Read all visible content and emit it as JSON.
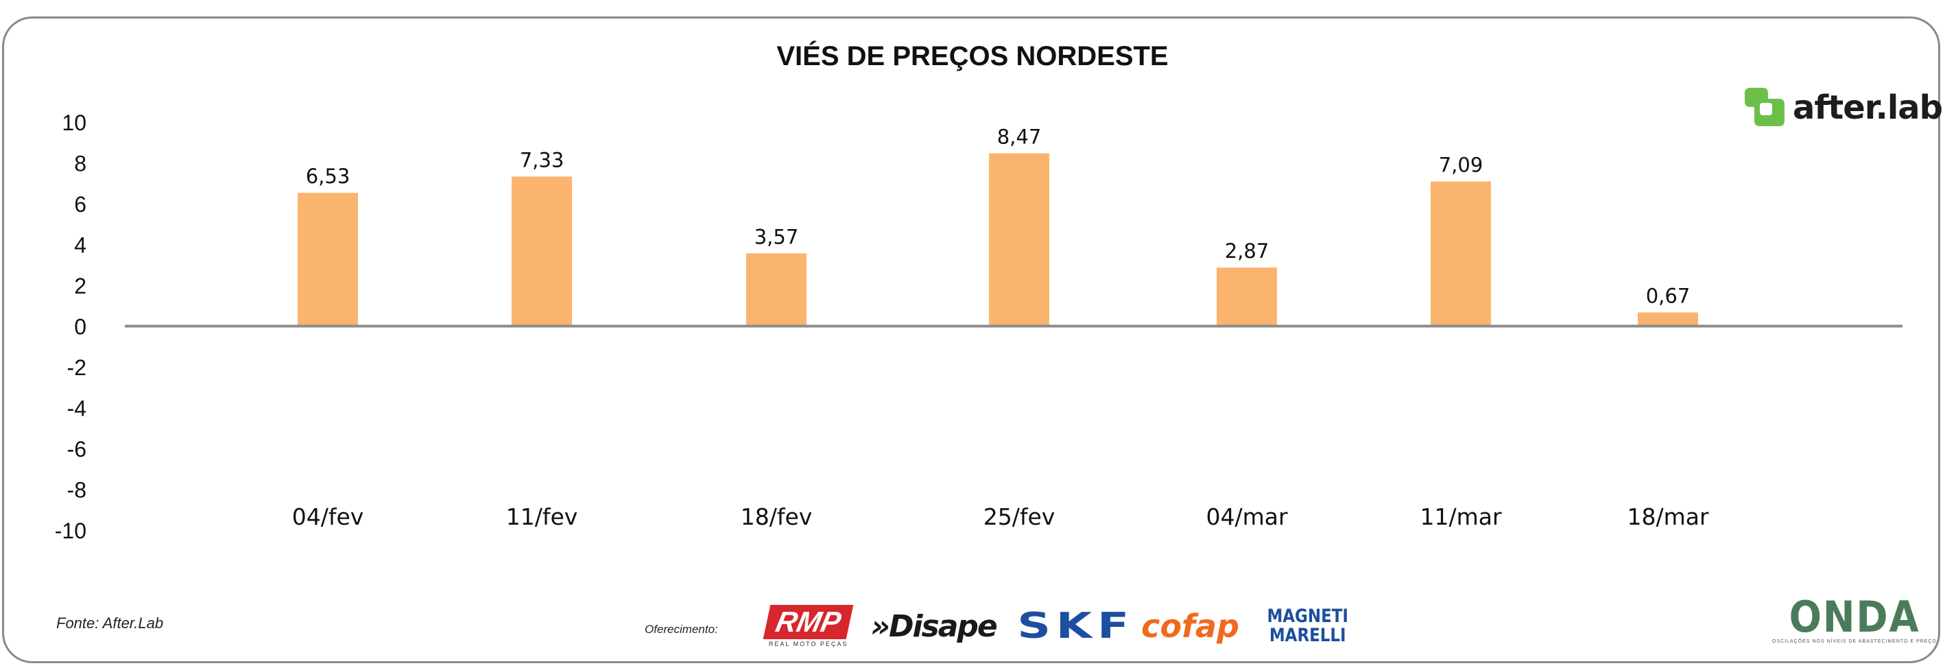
{
  "chart_data": {
    "type": "bar",
    "title": "VIÉS DE PREÇOS NORDESTE",
    "categories": [
      "04/fev",
      "11/fev",
      "18/fev",
      "25/fev",
      "04/mar",
      "11/mar",
      "18/mar"
    ],
    "values": [
      6.53,
      7.33,
      3.57,
      8.47,
      2.87,
      7.09,
      0.67
    ],
    "value_labels": [
      "6,53",
      "7,33",
      "3,57",
      "8,47",
      "2,87",
      "7,09",
      "0,67"
    ],
    "ylim": [
      -10,
      10
    ],
    "yticks": [
      10,
      8,
      6,
      4,
      2,
      0,
      -2,
      -4,
      -6,
      -8,
      -10
    ],
    "grid": false,
    "bar_color": "#fbb46e",
    "axis_color": "#8c8c8c"
  },
  "logo_text": "after.lab",
  "logo_color": "#6cc04a",
  "source": "Fonte: After.Lab",
  "sponsor_label": "Oferecimento:",
  "sponsors": {
    "rmp": "RMP",
    "rmp_sub": "REAL MOTO PEÇAS",
    "disape": "»Disape",
    "skf": "SKF",
    "cofap": "cofap",
    "magneti_1": "MAGNETI",
    "magneti_2": "MARELLI"
  },
  "onda_word": "ONDA",
  "onda_sub": "OSCILAÇÕES NOS NÍVEIS DE ABASTECIMENTO E PREÇO"
}
